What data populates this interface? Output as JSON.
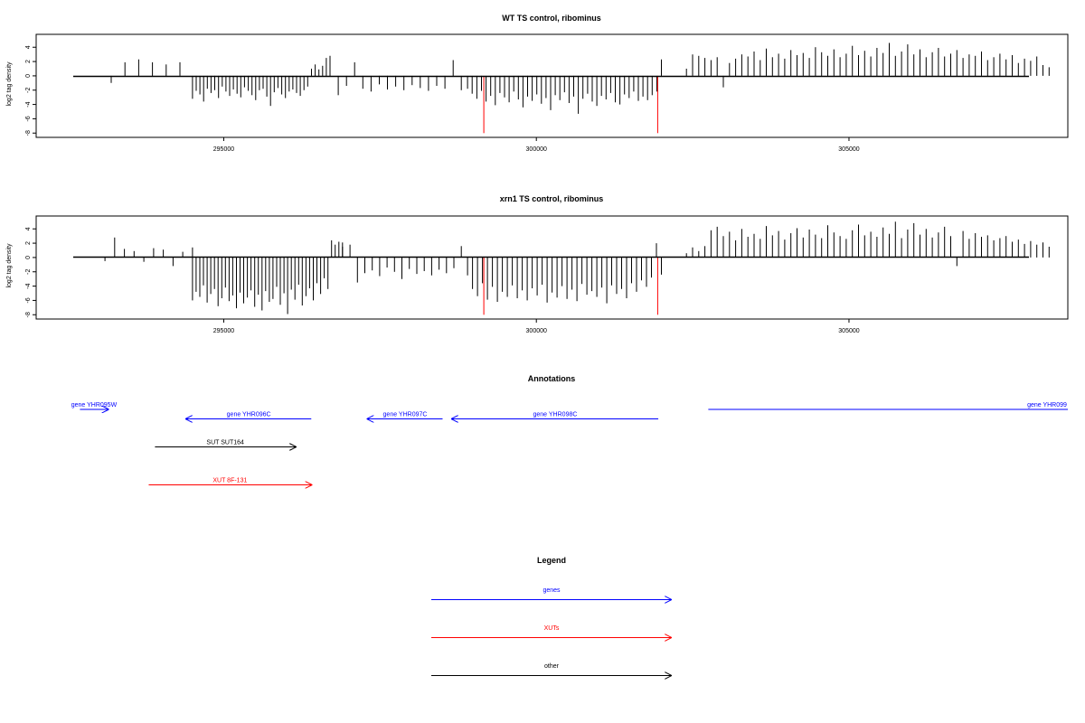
{
  "colors": {
    "gene": "#0000ff",
    "xut": "#ff0000",
    "other": "#000000",
    "highlight": "#ff0000",
    "bar": "#000000"
  },
  "chart_data": [
    {
      "type": "bar",
      "title": "WT TS control, ribominus",
      "ylabel": "log2 tag density",
      "xlim": [
        292000,
        308500
      ],
      "ylim": [
        -8.6,
        5.8
      ],
      "xticks": [
        295000,
        300000,
        305000
      ],
      "xtick_labels": [
        "295000",
        "300000",
        "305000"
      ],
      "yticks": [
        -8,
        -6,
        -4,
        -2,
        0,
        2,
        4
      ],
      "ytick_labels": [
        "-8",
        "-6",
        "-4",
        "-2",
        "0",
        "2",
        "4"
      ],
      "grid": false,
      "highlight_positions": [
        299160,
        301940
      ],
      "highlight_value": -8,
      "regions": [
        {
          "start": 293200,
          "end": 294300,
          "values": [
            -1,
            1.9,
            2.3,
            1.9,
            1.6,
            1.9
          ]
        },
        {
          "start": 294500,
          "end": 296700,
          "values": [
            -3.2,
            -2.1,
            -2.6,
            -3.6,
            -1.8,
            -2.4,
            -2.0,
            -3.1,
            -1.5,
            -2.2,
            -2.8,
            -1.9,
            -2.5,
            -3.0,
            -1.6,
            -2.1,
            -2.7,
            -3.4,
            -2.0,
            -1.8,
            -2.9,
            -4.2,
            -2.3,
            -1.7,
            -2.6,
            -3.1,
            -2.2,
            -1.9,
            -2.4,
            -2.8,
            -2.0,
            -1.5,
            1.0,
            1.6,
            0.9,
            1.4,
            2.5,
            1.0
          ]
        },
        {
          "start": 296700,
          "end": 298800,
          "values": [
            2.8,
            -2.7,
            -1.4,
            1.9,
            -1.8,
            -2.2,
            -1.2,
            -1.9,
            -1.5,
            -2.0,
            -1.3,
            -1.7,
            -2.1,
            -1.4,
            -1.8,
            2.2,
            -2.0
          ]
        },
        {
          "start": 298900,
          "end": 302000,
          "values": [
            -1.8,
            -2.5,
            -3.2,
            -2.1,
            -3.6,
            -2.8,
            -4.1,
            -2.4,
            -3.0,
            -3.7,
            -2.2,
            -3.3,
            -4.4,
            -2.9,
            -3.5,
            -2.6,
            -3.9,
            -3.1,
            -4.8,
            -2.7,
            -3.4,
            -2.3,
            -3.8,
            -2.9,
            -5.3,
            -3.2,
            -2.5,
            -3.6,
            -4.2,
            -2.8,
            -3.3,
            -2.4,
            -3.7,
            -4.0,
            -2.6,
            -3.1,
            -2.2,
            -3.5,
            -2.9,
            -3.4,
            -2.7,
            -2.2,
            2.3
          ]
        },
        {
          "start": 302400,
          "end": 308200,
          "values": [
            1.0,
            3.0,
            2.8,
            2.5,
            2.2,
            2.6,
            -1.6,
            1.8,
            2.4,
            3.0,
            2.7,
            3.4,
            2.2,
            3.8,
            2.6,
            3.1,
            2.4,
            3.6,
            2.9,
            3.2,
            2.5,
            4.0,
            3.3,
            2.8,
            3.7,
            2.6,
            3.1,
            4.2,
            2.9,
            3.5,
            2.7,
            3.9,
            3.2,
            4.6,
            2.8,
            3.4,
            4.4,
            3.0,
            3.7,
            2.6,
            3.3,
            3.9,
            2.7,
            3.1,
            3.6,
            2.5,
            3.0,
            2.8,
            3.4,
            2.2,
            2.6,
            3.1,
            2.3,
            2.9,
            1.8,
            2.4,
            2.1,
            2.7,
            1.5,
            1.2
          ]
        }
      ]
    },
    {
      "type": "bar",
      "title": "xrn1 TS control, ribominus",
      "ylabel": "log2 tag density",
      "xlim": [
        292000,
        308500
      ],
      "ylim": [
        -8.6,
        5.8
      ],
      "xticks": [
        295000,
        300000,
        305000
      ],
      "xtick_labels": [
        "295000",
        "300000",
        "305000"
      ],
      "yticks": [
        -8,
        -6,
        -4,
        -2,
        0,
        2,
        4
      ],
      "ytick_labels": [
        "-8",
        "-6",
        "-4",
        "-2",
        "0",
        "2",
        "4"
      ],
      "grid": false,
      "highlight_positions": [
        299160,
        301940
      ],
      "highlight_value": -8,
      "regions": [
        {
          "start": 293100,
          "end": 294500,
          "values": [
            -0.5,
            2.8,
            1.2,
            0.9,
            -0.6,
            1.3,
            1.1,
            -1.2,
            0.8,
            1.4
          ]
        },
        {
          "start": 294500,
          "end": 296900,
          "values": [
            -6.0,
            -4.8,
            -5.5,
            -3.9,
            -6.3,
            -5.1,
            -4.4,
            -6.8,
            -5.7,
            -4.2,
            -6.1,
            -5.3,
            -7.1,
            -4.9,
            -6.4,
            -5.6,
            -4.6,
            -6.9,
            -5.2,
            -7.4,
            -4.7,
            -6.2,
            -5.8,
            -4.1,
            -6.6,
            -5.0,
            -7.9,
            -4.5,
            -5.9,
            -3.8,
            -6.7,
            -5.4,
            -4.3,
            -6.0,
            -3.6,
            -5.1,
            -2.9,
            -4.4,
            2.4,
            1.8,
            2.2,
            1.5
          ]
        },
        {
          "start": 296900,
          "end": 298800,
          "values": [
            2.1,
            1.8,
            -3.5,
            -2.2,
            -1.8,
            -2.6,
            -1.4,
            -2.0,
            -3.0,
            -1.6,
            -2.3,
            -1.9,
            -2.5,
            -1.7,
            -2.2,
            -1.5,
            1.6
          ]
        },
        {
          "start": 298900,
          "end": 302000,
          "values": [
            -2.5,
            -4.4,
            -5.4,
            -3.6,
            -5.9,
            -4.1,
            -6.2,
            -4.8,
            -5.5,
            -3.9,
            -5.7,
            -4.6,
            -6.0,
            -4.3,
            -5.3,
            -3.8,
            -6.3,
            -4.9,
            -5.6,
            -4.0,
            -5.8,
            -4.5,
            -6.1,
            -3.7,
            -5.2,
            -4.7,
            -5.5,
            -4.2,
            -6.4,
            -3.9,
            -5.1,
            -4.4,
            -5.7,
            -3.6,
            -4.8,
            -3.2,
            -4.1,
            -2.8,
            2.0,
            -2.4
          ]
        },
        {
          "start": 302400,
          "end": 308200,
          "values": [
            0.6,
            1.4,
            0.9,
            1.6,
            3.8,
            4.3,
            3.0,
            3.6,
            2.4,
            4.0,
            2.9,
            3.3,
            2.6,
            4.4,
            3.1,
            3.7,
            2.5,
            3.4,
            4.1,
            2.8,
            3.9,
            3.2,
            2.7,
            4.5,
            3.5,
            3.0,
            2.6,
            3.8,
            4.6,
            3.1,
            3.6,
            2.9,
            4.2,
            3.3,
            5.0,
            2.7,
            3.9,
            4.8,
            3.2,
            4.0,
            2.8,
            3.5,
            4.3,
            3.0,
            -1.2,
            3.7,
            2.6,
            3.4,
            2.9,
            3.1,
            2.4,
            2.7,
            3.0,
            2.2,
            2.5,
            1.9,
            2.3,
            1.8,
            2.1,
            1.5
          ]
        }
      ]
    }
  ],
  "annotations": {
    "title": "Annotations",
    "xlim": [
      292000,
      308500
    ],
    "features": [
      {
        "label": "gene YHR095W",
        "start": 292700,
        "end": 293150,
        "strand": "+",
        "category": "gene",
        "row": 0
      },
      {
        "label": "gene YHR096C",
        "start": 294400,
        "end": 296400,
        "strand": "-",
        "category": "gene",
        "row": 1
      },
      {
        "label": "gene YHR097C",
        "start": 297300,
        "end": 298500,
        "strand": "-",
        "category": "gene",
        "row": 1
      },
      {
        "label": "gene YHR098C",
        "start": 298650,
        "end": 301950,
        "strand": "-",
        "category": "gene",
        "row": 1
      },
      {
        "label": "gene YHR099",
        "start": 302750,
        "end": 308500,
        "strand": "+",
        "category": "gene",
        "row": 0
      },
      {
        "label": "SUT SUT164",
        "start": 293900,
        "end": 296150,
        "strand": "+",
        "category": "other",
        "row": 2
      },
      {
        "label": "XUT 8F-131",
        "start": 293800,
        "end": 296400,
        "strand": "+",
        "category": "xut",
        "row": 3
      }
    ]
  },
  "legend": {
    "title": "Legend",
    "items": [
      {
        "label": "genes",
        "category": "gene"
      },
      {
        "label": "XUTs",
        "category": "xut"
      },
      {
        "label": "other",
        "category": "other"
      }
    ]
  }
}
